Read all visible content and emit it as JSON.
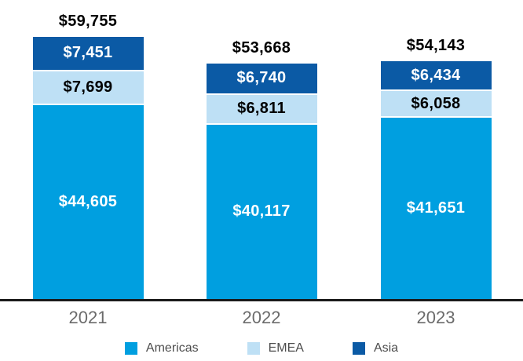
{
  "chart_data": {
    "type": "bar",
    "stacked": true,
    "title": "",
    "xlabel": "",
    "ylabel": "",
    "grid": false,
    "legend_position": "bottom",
    "categories": [
      "2021",
      "2022",
      "2023"
    ],
    "series": [
      {
        "name": "Americas",
        "color": "#009FE0",
        "label_color": "#FFFFFF",
        "values": [
          44605,
          40117,
          41651
        ],
        "value_labels": [
          "$44,605",
          "$40,117",
          "$41,651"
        ]
      },
      {
        "name": "EMEA",
        "color": "#BEE0F5",
        "label_color": "#000000",
        "values": [
          7699,
          6811,
          6058
        ],
        "value_labels": [
          "$7,699",
          "$6,811",
          "$6,058"
        ]
      },
      {
        "name": "Asia",
        "color": "#0B5AA5",
        "label_color": "#FFFFFF",
        "values": [
          7451,
          6740,
          6434
        ],
        "value_labels": [
          "$7,451",
          "$6,740",
          "$6,434"
        ]
      }
    ],
    "stack_top_to_bottom": [
      "Asia",
      "EMEA",
      "Americas"
    ],
    "totals": [
      59755,
      53668,
      54143
    ],
    "total_labels": [
      "$59,755",
      "$53,668",
      "$54,143"
    ],
    "legend": [
      "Americas",
      "EMEA",
      "Asia"
    ]
  },
  "colors": {
    "axis_line": "#1A1A1A",
    "total_label": "#000000",
    "year_label": "#6B6B6B",
    "legend_text": "#4D4D4D",
    "background": "#FFFFFF"
  }
}
